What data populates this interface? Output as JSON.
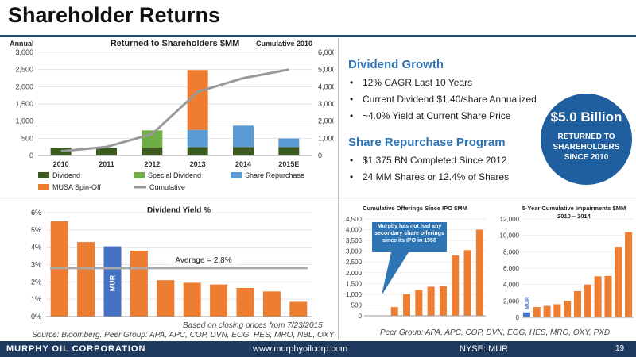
{
  "title": "Shareholder Returns",
  "chart_data": [
    {
      "type": "bar",
      "title": "Returned to Shareholders $MM",
      "left_axis_label": "Annual",
      "right_axis_label": "Cumulative 2010",
      "categories": [
        "2010",
        "2011",
        "2012",
        "2013",
        "2014",
        "2015E"
      ],
      "ylim": [
        0,
        3000
      ],
      "y_ticks": [
        "0",
        "500",
        "1,000",
        "1,500",
        "2,000",
        "2,500",
        "3,000"
      ],
      "y2lim": [
        0,
        6000
      ],
      "y2_ticks": [
        "0",
        "1,000",
        "2,000",
        "3,000",
        "4,000",
        "5,000",
        "6,000"
      ],
      "stacked": true,
      "series": [
        {
          "name": "Dividend",
          "values": [
            225,
            225,
            230,
            245,
            245,
            245
          ],
          "color": "#3c5a1e"
        },
        {
          "name": "Special Dividend",
          "values": [
            0,
            0,
            500,
            0,
            0,
            0
          ],
          "color": "#6fad47"
        },
        {
          "name": "Share Repurchase",
          "values": [
            0,
            0,
            0,
            500,
            625,
            250
          ],
          "color": "#5b9bd5"
        },
        {
          "name": "MUSA Spin-Off",
          "values": [
            0,
            0,
            0,
            1740,
            0,
            0
          ],
          "color": "#ed7d31"
        }
      ],
      "line_series": {
        "name": "Cumulative",
        "values": [
          250,
          500,
          1250,
          3700,
          4500,
          5000
        ],
        "color": "#999999"
      }
    },
    {
      "type": "bar",
      "title": "Dividend Yield %",
      "categories": [
        "",
        "",
        "",
        "",
        "",
        "",
        "",
        "",
        "",
        ""
      ],
      "values": [
        5.5,
        4.3,
        4.05,
        3.8,
        2.1,
        1.95,
        1.85,
        1.65,
        1.45,
        0.85
      ],
      "highlight_index": 2,
      "highlight_label": "MUR",
      "ylim": [
        0,
        6
      ],
      "y_ticks": [
        "0%",
        "1%",
        "2%",
        "3%",
        "4%",
        "5%",
        "6%"
      ],
      "average": 2.8,
      "average_label": "Average = 2.8%",
      "note": "Based on closing prices from 7/23/2015",
      "source": "Source: Bloomberg. Peer Group: APA, APC, COP, DVN, EOG, HES, MRO, NBL, OXY"
    },
    {
      "type": "bar",
      "title": "Cumulative Offerings Since IPO $MM",
      "values": [
        0,
        0,
        400,
        1000,
        1200,
        1350,
        1380,
        2800,
        3050,
        4000
      ],
      "ylim": [
        0,
        4500
      ],
      "y_ticks": [
        "0",
        "500",
        "1,000",
        "1,500",
        "2,000",
        "2,500",
        "3,000",
        "3,500",
        "4,000",
        "4,500"
      ],
      "callout": "Murphy has not had any secondary share offerings since its IPO in 1956"
    },
    {
      "type": "bar",
      "title": "5-Year Cumulative Impairments $MM",
      "subtitle": "2010 – 2014",
      "values": [
        600,
        1250,
        1400,
        1600,
        2000,
        3200,
        4000,
        5000,
        5050,
        8600,
        10400
      ],
      "highlight_index": 0,
      "highlight_label": "MUR",
      "ylim": [
        0,
        12000
      ],
      "y_ticks": [
        "0",
        "2,000",
        "4,000",
        "6,000",
        "8,000",
        "10,000",
        "12,000"
      ],
      "source": "Peer Group: APA, APC, COP, DVN, EOG, HES, MRO, OXY, PXD"
    }
  ],
  "dividend_growth": {
    "heading": "Dividend Growth",
    "bullets": [
      "12% CAGR Last 10 Years",
      "Current Dividend $1.40/share Annualized",
      "~4.0% Yield at Current Share Price"
    ]
  },
  "share_repurchase": {
    "heading": "Share Repurchase Program",
    "bullets": [
      "$1.375 BN Completed Since 2012",
      "24 MM Shares or 12.4% of Shares"
    ]
  },
  "highlight": {
    "amount": "$5.0 Billion",
    "caption": "RETURNED TO SHAREHOLDERS SINCE 2010"
  },
  "footer": {
    "company": "MURPHY OIL CORPORATION",
    "url": "www.murphyoilcorp.com",
    "ticker": "NYSE: MUR",
    "page": "19"
  },
  "colors": {
    "orange": "#ed7d31",
    "blue": "#4472c4",
    "navy": "#1f3a5f",
    "accent": "#2e75b6"
  }
}
